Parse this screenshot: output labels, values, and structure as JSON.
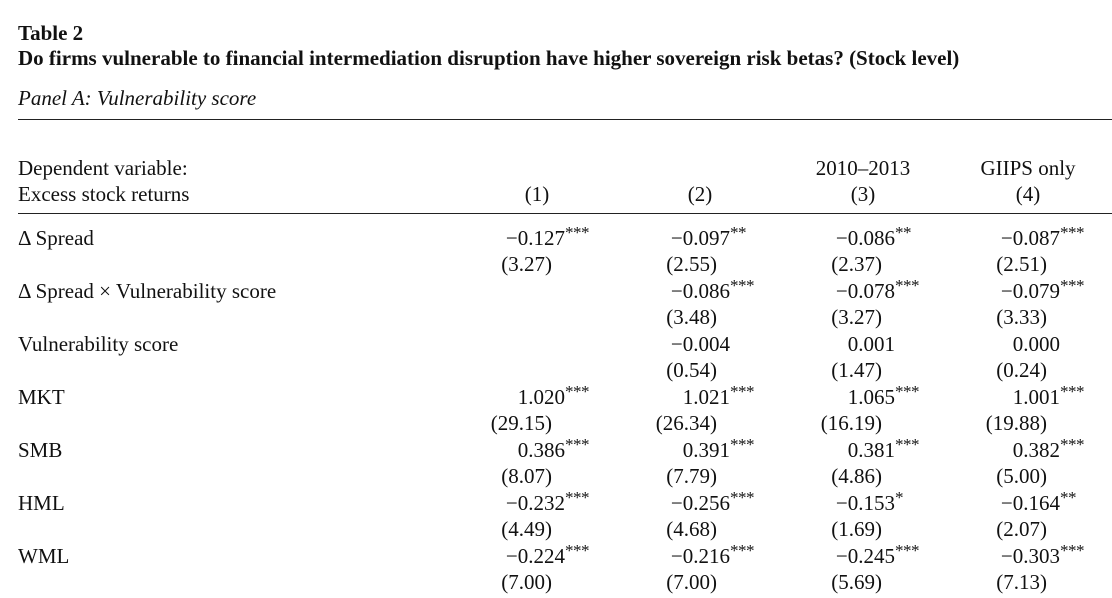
{
  "table_label": "Table 2",
  "table_title": "Do firms vulnerable to financial intermediation disruption have higher sovereign risk betas? (Stock level)",
  "panel_title": "Panel A: Vulnerability score",
  "header": {
    "dependent_variable": "Dependent variable:",
    "excess_returns": "Excess stock returns",
    "col3_sub": "2010–2013",
    "col4_sub": "GIIPS only",
    "col_numbers": [
      "(1)",
      "(2)",
      "(3)",
      "(4)"
    ]
  },
  "rows": [
    {
      "label": "Δ Spread",
      "coef": [
        {
          "v": "−0.127",
          "s": "***"
        },
        {
          "v": "−0.097",
          "s": "**"
        },
        {
          "v": "−0.086",
          "s": "**"
        },
        {
          "v": "−0.087",
          "s": "***"
        }
      ],
      "t": [
        "(3.27)",
        "(2.55)",
        "(2.37)",
        "(2.51)"
      ]
    },
    {
      "label": "Δ Spread × Vulnerability score",
      "coef": [
        {
          "v": "",
          "s": ""
        },
        {
          "v": "−0.086",
          "s": "***"
        },
        {
          "v": "−0.078",
          "s": "***"
        },
        {
          "v": "−0.079",
          "s": "***"
        }
      ],
      "t": [
        "",
        "(3.48)",
        "(3.27)",
        "(3.33)"
      ]
    },
    {
      "label": "Vulnerability score",
      "coef": [
        {
          "v": "",
          "s": ""
        },
        {
          "v": "−0.004",
          "s": ""
        },
        {
          "v": "0.001",
          "s": ""
        },
        {
          "v": "0.000",
          "s": ""
        }
      ],
      "t": [
        "",
        "(0.54)",
        "(1.47)",
        "(0.24)"
      ]
    },
    {
      "label": "MKT",
      "coef": [
        {
          "v": "1.020",
          "s": "***"
        },
        {
          "v": "1.021",
          "s": "***"
        },
        {
          "v": "1.065",
          "s": "***"
        },
        {
          "v": "1.001",
          "s": "***"
        }
      ],
      "t": [
        "(29.15)",
        "(26.34)",
        "(16.19)",
        "(19.88)"
      ]
    },
    {
      "label": "SMB",
      "coef": [
        {
          "v": "0.386",
          "s": "***"
        },
        {
          "v": "0.391",
          "s": "***"
        },
        {
          "v": "0.381",
          "s": "***"
        },
        {
          "v": "0.382",
          "s": "***"
        }
      ],
      "t": [
        "(8.07)",
        "(7.79)",
        "(4.86)",
        "(5.00)"
      ]
    },
    {
      "label": "HML",
      "coef": [
        {
          "v": "−0.232",
          "s": "***"
        },
        {
          "v": "−0.256",
          "s": "***"
        },
        {
          "v": "−0.153",
          "s": "*"
        },
        {
          "v": "−0.164",
          "s": "**"
        }
      ],
      "t": [
        "(4.49)",
        "(4.68)",
        "(1.69)",
        "(2.07)"
      ]
    },
    {
      "label": "WML",
      "coef": [
        {
          "v": "−0.224",
          "s": "***"
        },
        {
          "v": "−0.216",
          "s": "***"
        },
        {
          "v": "−0.245",
          "s": "***"
        },
        {
          "v": "−0.303",
          "s": "***"
        }
      ],
      "t": [
        "(7.00)",
        "(7.00)",
        "(5.69)",
        "(7.13)"
      ]
    }
  ]
}
